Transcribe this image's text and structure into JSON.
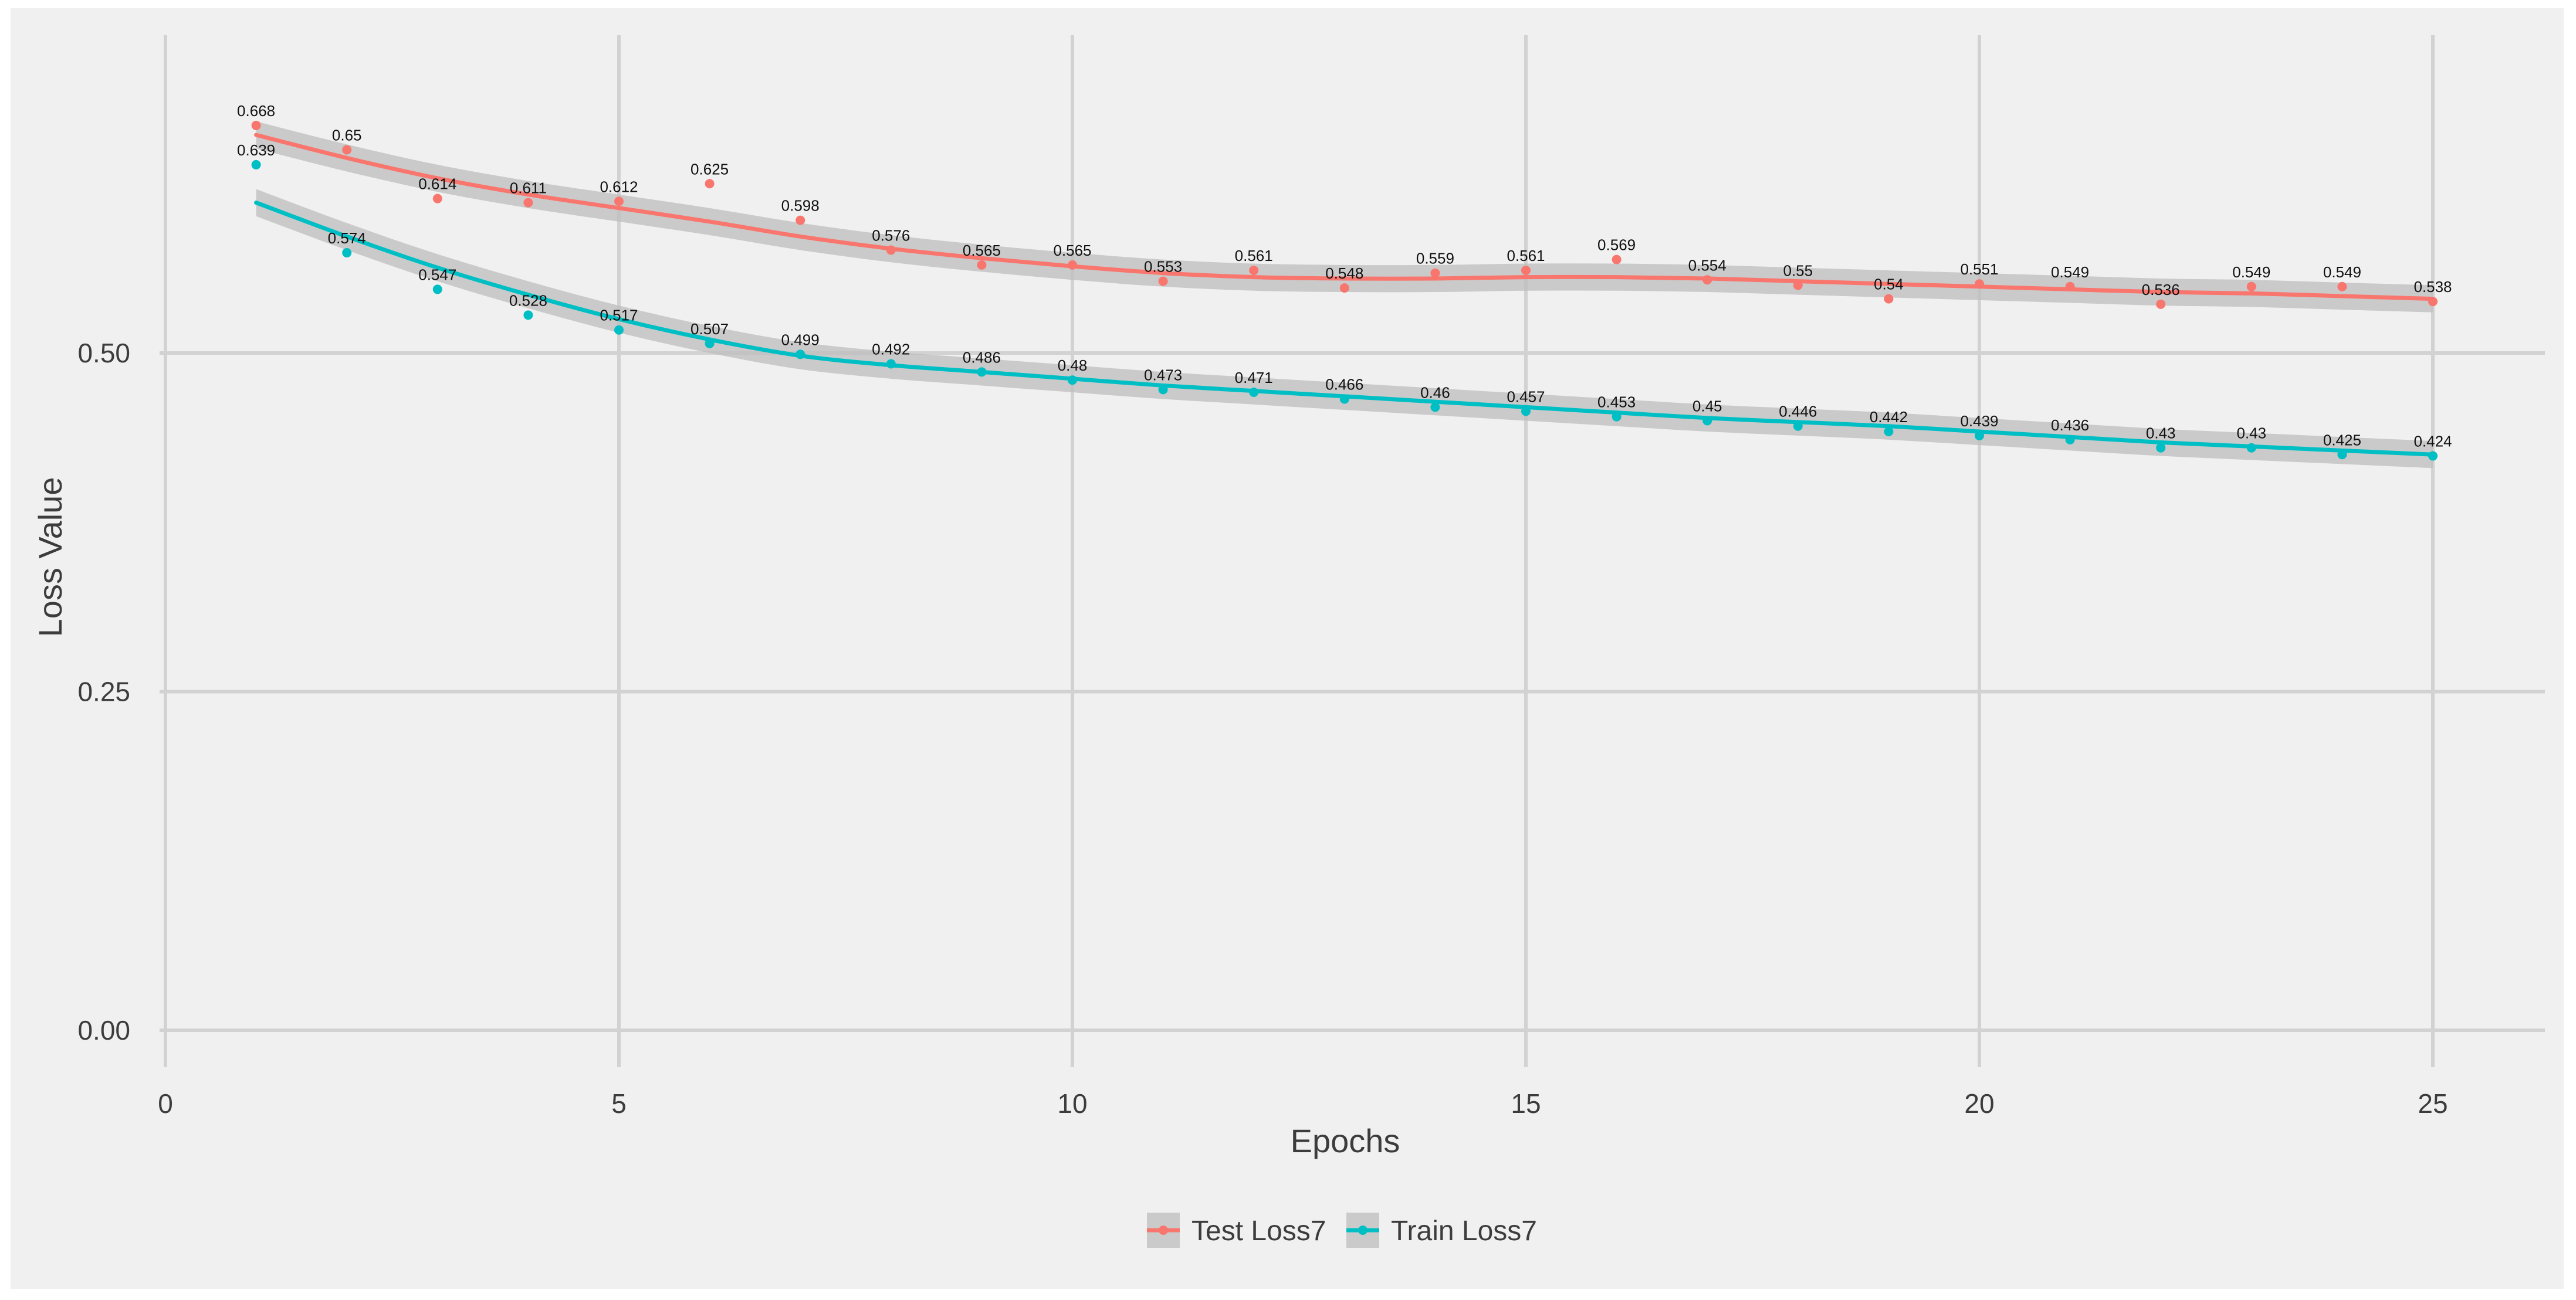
{
  "chart_data": {
    "type": "line",
    "title": "",
    "xlabel": "Epochs",
    "ylabel": "Loss Value",
    "xlim": [
      0,
      26.2
    ],
    "ylim": [
      -0.025,
      0.745
    ],
    "x_ticks": [
      0,
      5,
      10,
      15,
      20,
      25
    ],
    "y_ticks": [
      0.0,
      0.25,
      0.5
    ],
    "x_tick_labels": [
      "0",
      "5",
      "10",
      "15",
      "20",
      "25"
    ],
    "y_tick_labels": [
      "0.00",
      "0.25",
      "0.50"
    ],
    "grid": true,
    "legend_position": "bottom",
    "smoothing": "loess with confidence band",
    "x": [
      1,
      2,
      3,
      4,
      5,
      6,
      7,
      8,
      9,
      10,
      11,
      12,
      13,
      14,
      15,
      16,
      17,
      18,
      19,
      20,
      21,
      22,
      23,
      24,
      25
    ],
    "series": [
      {
        "name": "Test Loss7",
        "color": "#F8766D",
        "values": [
          0.668,
          0.65,
          0.614,
          0.611,
          0.612,
          0.625,
          0.598,
          0.576,
          0.565,
          0.565,
          0.553,
          0.561,
          0.548,
          0.559,
          0.561,
          0.569,
          0.554,
          0.55,
          0.54,
          0.551,
          0.549,
          0.536,
          0.549,
          0.549,
          0.538
        ],
        "labels": [
          "0.668",
          "0.65",
          "0.614",
          "0.611",
          "0.612",
          "0.625",
          "0.598",
          "0.576",
          "0.565",
          "0.565",
          "0.553",
          "0.561",
          "0.548",
          "0.559",
          "0.561",
          "0.569",
          "0.554",
          "0.55",
          "0.54",
          "0.551",
          "0.549",
          "0.536",
          "0.549",
          "0.549",
          "0.538"
        ],
        "smooth": [
          0.661,
          0.644,
          0.629,
          0.617,
          0.607,
          0.597,
          0.586,
          0.577,
          0.57,
          0.564,
          0.559,
          0.556,
          0.555,
          0.555,
          0.556,
          0.556,
          0.555,
          0.553,
          0.551,
          0.549,
          0.547,
          0.545,
          0.544,
          0.542,
          0.54
        ],
        "band": 0.01
      },
      {
        "name": "Train Loss7",
        "color": "#00BFC4",
        "values": [
          0.639,
          0.574,
          0.547,
          0.528,
          0.517,
          0.507,
          0.499,
          0.492,
          0.486,
          0.48,
          0.473,
          0.471,
          0.466,
          0.46,
          0.457,
          0.453,
          0.45,
          0.446,
          0.442,
          0.439,
          0.436,
          0.43,
          0.43,
          0.425,
          0.424
        ],
        "labels": [
          "0.639",
          "0.574",
          "0.547",
          "0.528",
          "0.517",
          "0.507",
          "0.499",
          "0.492",
          "0.486",
          "0.48",
          "0.473",
          "0.471",
          "0.466",
          "0.46",
          "0.457",
          "0.453",
          "0.45",
          "0.446",
          "0.442",
          "0.439",
          "0.436",
          "0.43",
          "0.43",
          "0.425",
          "0.424"
        ],
        "smooth": [
          0.611,
          0.586,
          0.563,
          0.543,
          0.525,
          0.51,
          0.498,
          0.491,
          0.486,
          0.481,
          0.476,
          0.472,
          0.468,
          0.464,
          0.46,
          0.456,
          0.452,
          0.449,
          0.446,
          0.442,
          0.438,
          0.434,
          0.431,
          0.428,
          0.425
        ],
        "band": 0.01
      }
    ]
  },
  "colors": {
    "panel_background": "#F0F0F0",
    "grid": "#D2D2D2",
    "band": "#BEBEBE",
    "text": "#3C3C3C"
  }
}
